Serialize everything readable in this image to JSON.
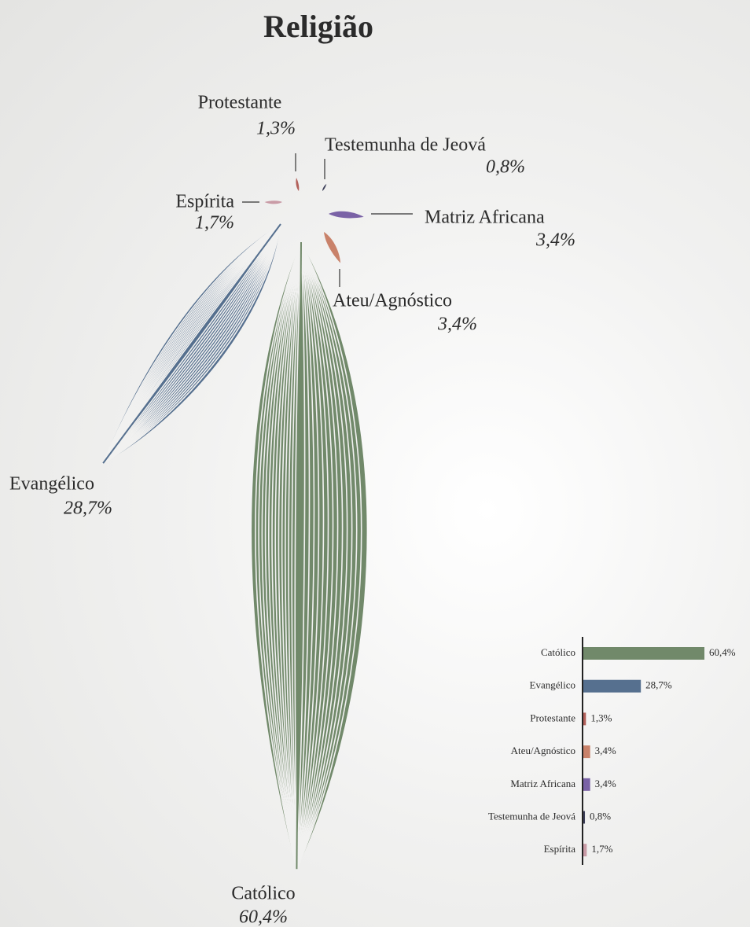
{
  "chart_data": {
    "type": "bar",
    "title": "Religião",
    "categories": [
      "Católico",
      "Evangélico",
      "Protestante",
      "Ateu/Agnóstico",
      "Matriz Africana",
      "Testemunha de Jeová",
      "Espírita"
    ],
    "values": [
      60.4,
      28.7,
      1.3,
      3.4,
      3.4,
      0.8,
      1.7
    ],
    "value_labels": [
      "60,4%",
      "28,7%",
      "1,3%",
      "3,4%",
      "3,4%",
      "0,8%",
      "1,7%"
    ],
    "colors": [
      "#71896a",
      "#56708f",
      "#b2605a",
      "#c9826a",
      "#7a62a6",
      "#3c3e58",
      "#c99ba6"
    ]
  }
}
